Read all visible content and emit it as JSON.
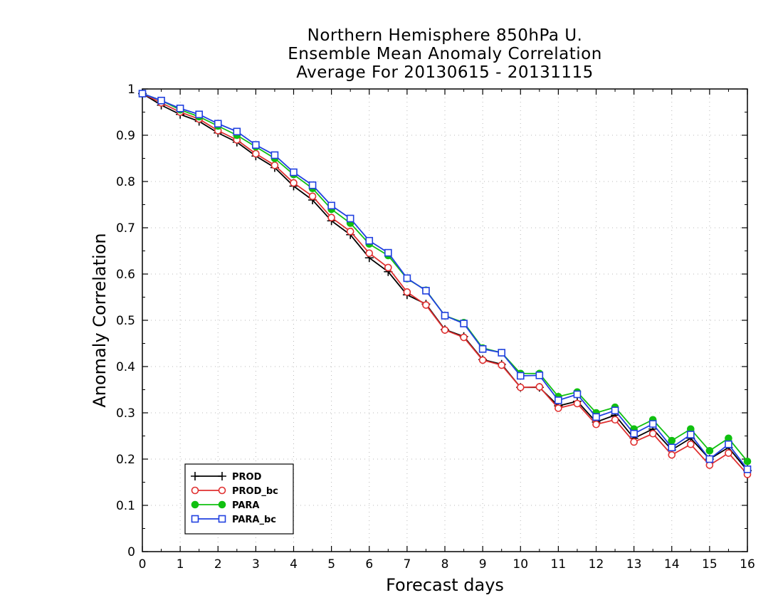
{
  "chart_data": {
    "type": "line",
    "title": "Northern Hemisphere 850hPa U.",
    "subtitle": "Ensemble Mean Anomaly Correlation",
    "period": "Average For 20130615 - 20131115",
    "xlabel": "Forecast days",
    "ylabel": "Anomaly Correlation",
    "xlim": [
      0,
      16
    ],
    "ylim": [
      0,
      1
    ],
    "xticks": [
      "0",
      "1",
      "2",
      "3",
      "4",
      "5",
      "6",
      "7",
      "8",
      "9",
      "10",
      "11",
      "12",
      "13",
      "14",
      "15",
      "16"
    ],
    "yticks": [
      "0",
      "0.1",
      "0.2",
      "0.3",
      "0.4",
      "0.5",
      "0.6",
      "0.7",
      "0.8",
      "0.9",
      "1"
    ],
    "grid": true,
    "legend_position": "bottom-left",
    "x": [
      0,
      0.5,
      1,
      1.5,
      2,
      2.5,
      3,
      3.5,
      4,
      4.5,
      5,
      5.5,
      6,
      6.5,
      7,
      7.5,
      8,
      8.5,
      9,
      9.5,
      10,
      10.5,
      11,
      11.5,
      12,
      12.5,
      13,
      13.5,
      14,
      14.5,
      15,
      15.5,
      16
    ],
    "series": [
      {
        "name": "PROD",
        "color": "#000000",
        "marker": "plus",
        "values": [
          0.99,
          0.965,
          0.945,
          0.93,
          0.905,
          0.885,
          0.855,
          0.83,
          0.79,
          0.76,
          0.715,
          0.685,
          0.635,
          0.605,
          0.555,
          0.535,
          0.48,
          0.465,
          0.415,
          0.405,
          0.355,
          0.355,
          0.315,
          0.325,
          0.28,
          0.295,
          0.245,
          0.265,
          0.22,
          0.245,
          0.2,
          0.225,
          0.175
        ]
      },
      {
        "name": "PROD_bc",
        "color": "#e03030",
        "marker": "open-circle",
        "values": [
          0.99,
          0.97,
          0.95,
          0.935,
          0.91,
          0.89,
          0.86,
          0.835,
          0.797,
          0.768,
          0.722,
          0.692,
          0.645,
          0.614,
          0.561,
          0.533,
          0.479,
          0.463,
          0.414,
          0.403,
          0.355,
          0.356,
          0.31,
          0.32,
          0.275,
          0.285,
          0.237,
          0.255,
          0.209,
          0.232,
          0.187,
          0.213,
          0.167
        ]
      },
      {
        "name": "PARA",
        "color": "#10c010",
        "marker": "filled-circle",
        "values": [
          0.99,
          0.975,
          0.955,
          0.94,
          0.92,
          0.9,
          0.875,
          0.85,
          0.815,
          0.785,
          0.74,
          0.71,
          0.665,
          0.64,
          0.59,
          0.565,
          0.51,
          0.495,
          0.44,
          0.43,
          0.385,
          0.385,
          0.335,
          0.345,
          0.3,
          0.312,
          0.265,
          0.285,
          0.24,
          0.265,
          0.218,
          0.245,
          0.195
        ]
      },
      {
        "name": "PARA_bc",
        "color": "#2040e0",
        "marker": "open-square",
        "values": [
          0.99,
          0.975,
          0.958,
          0.945,
          0.925,
          0.908,
          0.879,
          0.857,
          0.82,
          0.792,
          0.748,
          0.72,
          0.672,
          0.646,
          0.591,
          0.564,
          0.51,
          0.493,
          0.438,
          0.43,
          0.38,
          0.381,
          0.327,
          0.34,
          0.291,
          0.305,
          0.255,
          0.276,
          0.225,
          0.253,
          0.2,
          0.232,
          0.178
        ]
      }
    ]
  }
}
